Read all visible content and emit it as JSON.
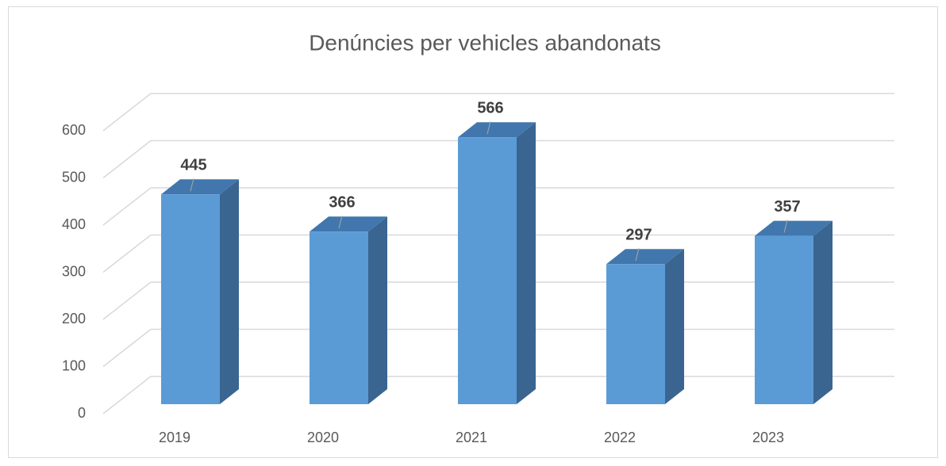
{
  "chart_data": {
    "type": "bar3d",
    "title": "Denúncies per vehicles abandonats",
    "categories": [
      "2019",
      "2020",
      "2021",
      "2022",
      "2023"
    ],
    "values": [
      445,
      366,
      566,
      297,
      357
    ],
    "color": "#5b9bd5",
    "ylim": [
      0,
      600
    ],
    "yticks": [
      0,
      100,
      200,
      300,
      400,
      500,
      600
    ],
    "grid": true
  }
}
